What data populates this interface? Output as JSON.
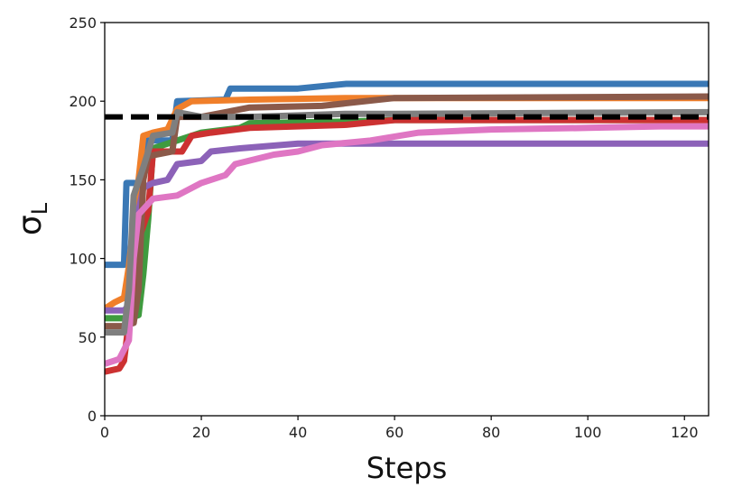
{
  "chart_data": {
    "type": "line",
    "title": "",
    "xlabel": "Steps",
    "ylabel": "σ_L",
    "ylabel_main": "σ",
    "ylabel_sub": "L",
    "xlim": [
      0,
      125
    ],
    "ylim": [
      0,
      250
    ],
    "xticks": [
      0,
      20,
      40,
      60,
      80,
      100,
      120
    ],
    "yticks": [
      0,
      50,
      100,
      150,
      200,
      250
    ],
    "grid": false,
    "legend": "none",
    "reference_line": {
      "y": 190,
      "color": "#000000",
      "style": "dashed"
    },
    "series": [
      {
        "color": "#3a78b5",
        "points": [
          [
            0,
            96
          ],
          [
            4,
            96
          ],
          [
            4.5,
            148
          ],
          [
            7,
            148
          ],
          [
            7.5,
            162
          ],
          [
            9,
            175
          ],
          [
            14,
            175
          ],
          [
            15,
            200
          ],
          [
            25,
            201
          ],
          [
            26,
            208
          ],
          [
            40,
            208
          ],
          [
            50,
            211
          ],
          [
            125,
            211
          ]
        ]
      },
      {
        "color": "#f07f2a",
        "points": [
          [
            0,
            68
          ],
          [
            2,
            72
          ],
          [
            4,
            75
          ],
          [
            5,
            95
          ],
          [
            7,
            150
          ],
          [
            8,
            178
          ],
          [
            10,
            180
          ],
          [
            13,
            182
          ],
          [
            15,
            195
          ],
          [
            18,
            200
          ],
          [
            30,
            201
          ],
          [
            50,
            202
          ],
          [
            125,
            202
          ]
        ]
      },
      {
        "color": "#3f9b3f",
        "points": [
          [
            0,
            62
          ],
          [
            4,
            62
          ],
          [
            5,
            62
          ],
          [
            7,
            64
          ],
          [
            8,
            90
          ],
          [
            9,
            125
          ],
          [
            10,
            170
          ],
          [
            15,
            175
          ],
          [
            20,
            180
          ],
          [
            28,
            183
          ],
          [
            30,
            186
          ],
          [
            50,
            187
          ],
          [
            60,
            188
          ],
          [
            125,
            188
          ]
        ]
      },
      {
        "color": "#cc3131",
        "points": [
          [
            0,
            28
          ],
          [
            3,
            30
          ],
          [
            4,
            35
          ],
          [
            5,
            60
          ],
          [
            7,
            112
          ],
          [
            9,
            130
          ],
          [
            10,
            168
          ],
          [
            16,
            168
          ],
          [
            18,
            178
          ],
          [
            22,
            180
          ],
          [
            30,
            183
          ],
          [
            50,
            185
          ],
          [
            60,
            188
          ],
          [
            125,
            188
          ]
        ]
      },
      {
        "color": "#8c62b8",
        "points": [
          [
            0,
            67
          ],
          [
            4,
            67
          ],
          [
            5,
            70
          ],
          [
            7,
            130
          ],
          [
            8,
            145
          ],
          [
            10,
            148
          ],
          [
            13,
            150
          ],
          [
            15,
            160
          ],
          [
            20,
            162
          ],
          [
            22,
            168
          ],
          [
            28,
            170
          ],
          [
            40,
            173
          ],
          [
            125,
            173
          ]
        ]
      },
      {
        "color": "#8b5a4a",
        "points": [
          [
            0,
            57
          ],
          [
            4,
            57
          ],
          [
            6,
            59
          ],
          [
            7,
            80
          ],
          [
            8,
            150
          ],
          [
            9,
            165
          ],
          [
            14,
            168
          ],
          [
            15,
            190
          ],
          [
            20,
            190
          ],
          [
            30,
            196
          ],
          [
            45,
            197
          ],
          [
            60,
            202
          ],
          [
            125,
            203
          ]
        ]
      },
      {
        "color": "#df76c3",
        "points": [
          [
            0,
            33
          ],
          [
            3,
            36
          ],
          [
            5,
            48
          ],
          [
            6,
            100
          ],
          [
            7,
            128
          ],
          [
            10,
            138
          ],
          [
            15,
            140
          ],
          [
            20,
            148
          ],
          [
            25,
            153
          ],
          [
            27,
            160
          ],
          [
            35,
            166
          ],
          [
            40,
            168
          ],
          [
            45,
            172
          ],
          [
            55,
            175
          ],
          [
            65,
            180
          ],
          [
            80,
            182
          ],
          [
            100,
            183
          ],
          [
            115,
            184
          ],
          [
            125,
            184
          ]
        ]
      },
      {
        "color": "#7f7f7f",
        "points": [
          [
            0,
            53
          ],
          [
            4,
            53
          ],
          [
            5,
            80
          ],
          [
            6,
            140
          ],
          [
            8,
            158
          ],
          [
            10,
            178
          ],
          [
            14,
            180
          ],
          [
            15,
            193
          ],
          [
            20,
            190
          ],
          [
            30,
            190
          ],
          [
            50,
            192
          ],
          [
            60,
            192
          ],
          [
            125,
            193
          ]
        ]
      }
    ]
  }
}
